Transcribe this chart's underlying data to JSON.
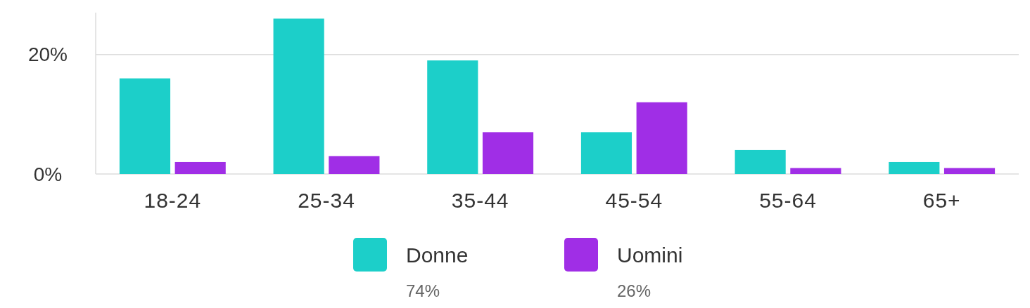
{
  "chart_data": {
    "type": "bar",
    "categories": [
      "18-24",
      "25-34",
      "35-44",
      "45-54",
      "55-64",
      "65+"
    ],
    "series": [
      {
        "name": "Donne",
        "color": "#1ccfc9",
        "values": [
          16,
          26,
          19,
          7,
          4,
          2
        ]
      },
      {
        "name": "Uomini",
        "color": "#a02ee6",
        "values": [
          2,
          3,
          7,
          12,
          1,
          1
        ]
      }
    ],
    "ylim": [
      0,
      27
    ],
    "yticks": [
      {
        "value": 0,
        "label": "0%"
      },
      {
        "value": 20,
        "label": "20%"
      }
    ],
    "grid": "y",
    "legend": "bottom",
    "annotations": [
      "74%",
      "26%"
    ]
  }
}
